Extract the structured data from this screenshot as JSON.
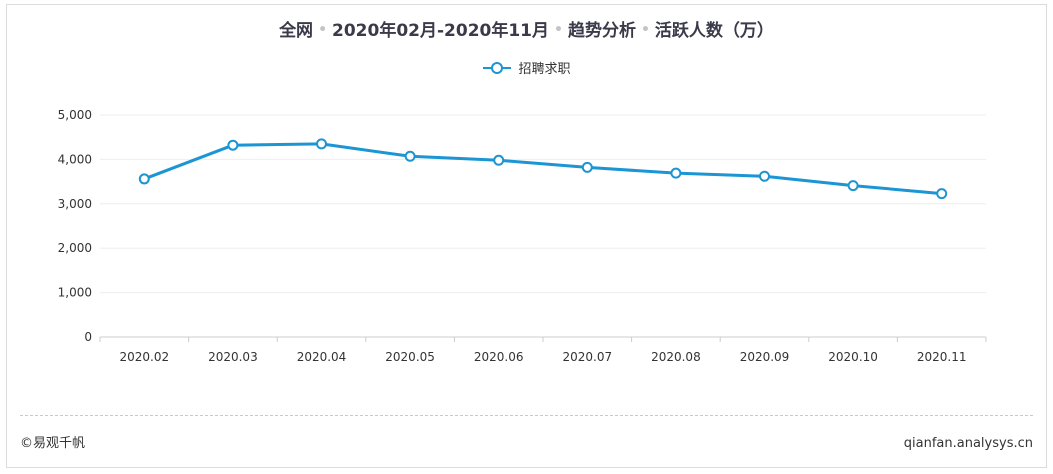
{
  "header": {
    "scope": "全网",
    "period": "2020年02月-2020年11月",
    "analysis": "趋势分析",
    "metric": "活跃人数（万）"
  },
  "footer": {
    "copyright": "©易观千帆",
    "site": "qianfan.analysys.cn"
  },
  "chart_data": {
    "type": "line",
    "title": "全网 · 2020年02月-2020年11月 · 趋势分析 · 活跃人数（万）",
    "categories": [
      "2020.02",
      "2020.03",
      "2020.04",
      "2020.05",
      "2020.06",
      "2020.07",
      "2020.08",
      "2020.09",
      "2020.10",
      "2020.11"
    ],
    "series": [
      {
        "name": "招聘求职",
        "color": "#1b95d4",
        "values": [
          3560,
          4320,
          4350,
          4070,
          3980,
          3820,
          3690,
          3620,
          3410,
          3230
        ]
      }
    ],
    "ylim": [
      0,
      5000
    ],
    "yticks": [
      0,
      1000,
      2000,
      3000,
      4000,
      5000
    ],
    "ytick_labels": [
      "0",
      "1,000",
      "2,000",
      "3,000",
      "4,000",
      "5,000"
    ],
    "grid": true,
    "legend": "top-center"
  }
}
